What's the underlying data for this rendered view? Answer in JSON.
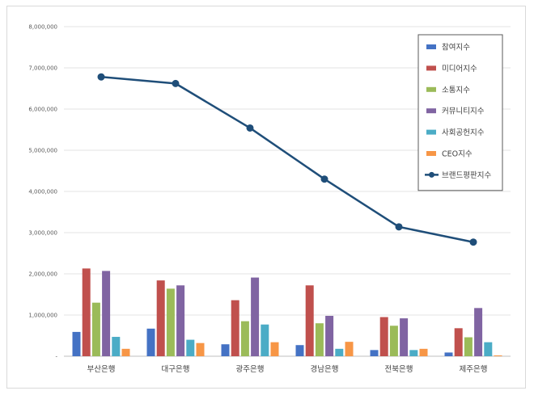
{
  "chart_data": {
    "type": "bar",
    "title": "",
    "xlabel": "",
    "ylabel": "",
    "ylim": [
      0,
      8000000
    ],
    "y_ticks": [
      {
        "value": 0,
        "label": "-"
      },
      {
        "value": 1000000,
        "label": "1,000,000"
      },
      {
        "value": 2000000,
        "label": "2,000,000"
      },
      {
        "value": 3000000,
        "label": "3,000,000"
      },
      {
        "value": 4000000,
        "label": "4,000,000"
      },
      {
        "value": 5000000,
        "label": "5,000,000"
      },
      {
        "value": 6000000,
        "label": "6,000,000"
      },
      {
        "value": 7000000,
        "label": "7,000,000"
      },
      {
        "value": 8000000,
        "label": "8,000,000"
      }
    ],
    "grid": true,
    "legend_position": "top-right",
    "categories": [
      "부산은행",
      "대구은행",
      "광주은행",
      "경남은행",
      "전북은행",
      "제주은행"
    ],
    "series": [
      {
        "name": "참여지수",
        "type": "bar",
        "color": "#4472C4",
        "values": [
          590000,
          670000,
          290000,
          270000,
          150000,
          90000
        ]
      },
      {
        "name": "미디어지수",
        "type": "bar",
        "color": "#C0504D",
        "values": [
          2130000,
          1840000,
          1360000,
          1720000,
          950000,
          680000
        ]
      },
      {
        "name": "소통지수",
        "type": "bar",
        "color": "#9BBB59",
        "values": [
          1300000,
          1640000,
          850000,
          800000,
          740000,
          460000
        ]
      },
      {
        "name": "커뮤니티지수",
        "type": "bar",
        "color": "#8064A2",
        "values": [
          2070000,
          1720000,
          1910000,
          980000,
          920000,
          1170000
        ]
      },
      {
        "name": "사회공헌지수",
        "type": "bar",
        "color": "#4BACC6",
        "values": [
          470000,
          400000,
          770000,
          180000,
          150000,
          340000
        ]
      },
      {
        "name": "CEO지수",
        "type": "bar",
        "color": "#F79646",
        "values": [
          180000,
          320000,
          340000,
          350000,
          180000,
          20000
        ]
      },
      {
        "name": "브랜드평판지수",
        "type": "line",
        "color": "#1F4E79",
        "values": [
          6780000,
          6620000,
          5540000,
          4300000,
          3140000,
          2770000
        ]
      }
    ]
  }
}
